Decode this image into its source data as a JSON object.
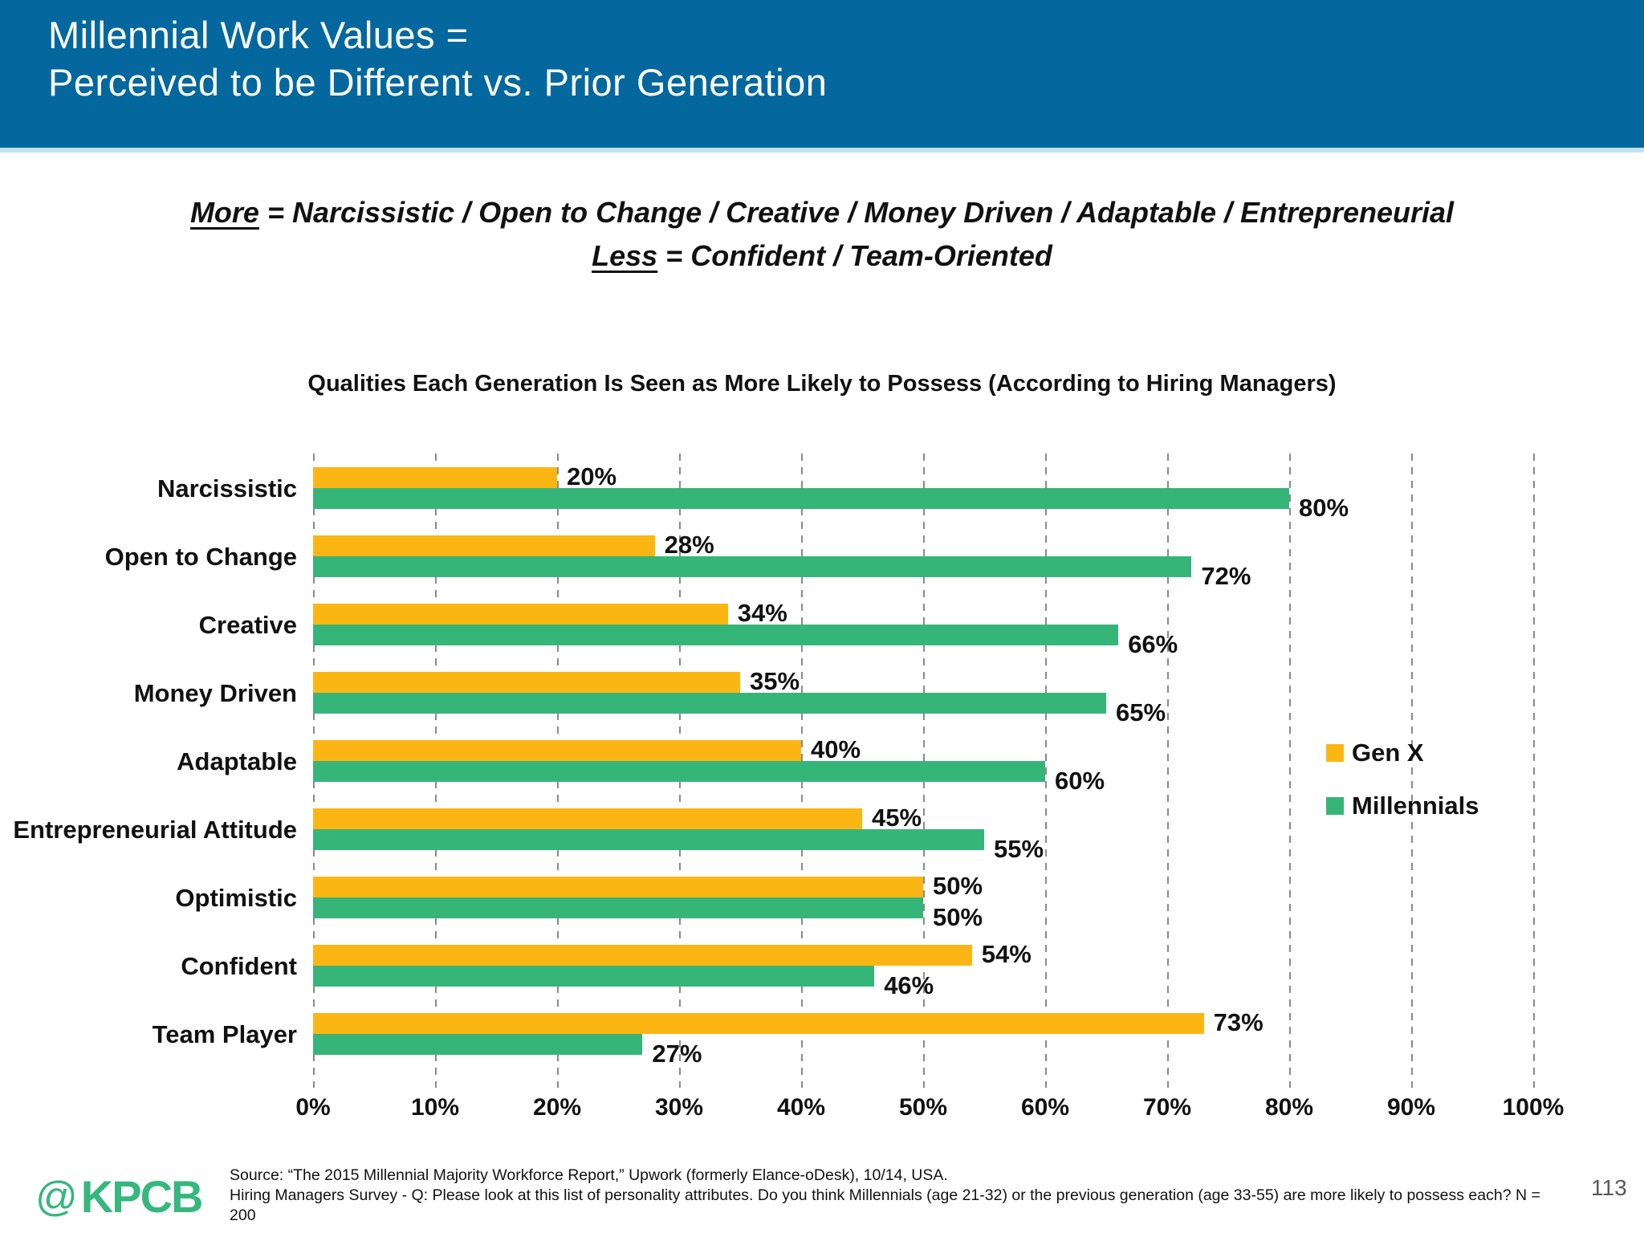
{
  "header": {
    "title_line1": "Millennial Work Values =",
    "title_line2": "Perceived to be Different vs. Prior Generation",
    "background_color": "#04689e"
  },
  "subtitle": {
    "more_word": "More",
    "more_rest": " = Narcissistic / Open to Change / Creative / Money Driven / Adaptable / Entrepreneurial",
    "less_word": "Less",
    "less_rest": " = Confident / Team-Oriented"
  },
  "chart_data": {
    "type": "bar",
    "orientation": "horizontal",
    "title": "Qualities Each Generation Is Seen as More Likely to Possess (According to Hiring Managers)",
    "categories": [
      "Narcissistic",
      "Open to Change",
      "Creative",
      "Money Driven",
      "Adaptable",
      "Entrepreneurial Attitude",
      "Optimistic",
      "Confident",
      "Team Player"
    ],
    "series": [
      {
        "name": "Gen X",
        "color": "#fcb614",
        "values": [
          20,
          28,
          34,
          35,
          40,
          45,
          50,
          54,
          73
        ]
      },
      {
        "name": "Millennials",
        "color": "#36b579",
        "values": [
          80,
          72,
          66,
          65,
          60,
          55,
          50,
          46,
          27
        ]
      }
    ],
    "value_labels": {
      "Gen X": [
        "20%",
        "28%",
        "34%",
        "35%",
        "40%",
        "45%",
        "50%",
        "54%",
        "73%"
      ],
      "Millennials": [
        "80%",
        "72%",
        "66%",
        "65%",
        "60%",
        "55%",
        "50%",
        "46%",
        "27%"
      ]
    },
    "xlabel": "",
    "ylabel": "",
    "xlim": [
      0,
      100
    ],
    "x_ticks": [
      "0%",
      "10%",
      "20%",
      "30%",
      "40%",
      "50%",
      "60%",
      "70%",
      "80%",
      "90%",
      "100%"
    ],
    "grid": "vertical-dashed",
    "gridline_color": "#8a8a8a",
    "legend_position": "middle-right"
  },
  "footer": {
    "logo_at": "@",
    "logo_text": "KPCB",
    "source_line1": "Source: “The 2015 Millennial Majority Workforce Report,” Upwork (formerly Elance-oDesk), 10/14, USA.",
    "source_line2": "Hiring Managers Survey - Q: Please look at this list of personality attributes. Do you think Millennials (age 21-32) or the previous generation (age 33-55) are more likely to possess each? N = 200",
    "page_number": "113"
  },
  "colors": {
    "header_blue": "#04689e",
    "header_underline": "#c3e2f2",
    "gen_x_yellow": "#fcb614",
    "millennials_green": "#36b579",
    "text_black": "#111111",
    "page_number_gray": "#595959",
    "logo_green": "#36b77d"
  }
}
